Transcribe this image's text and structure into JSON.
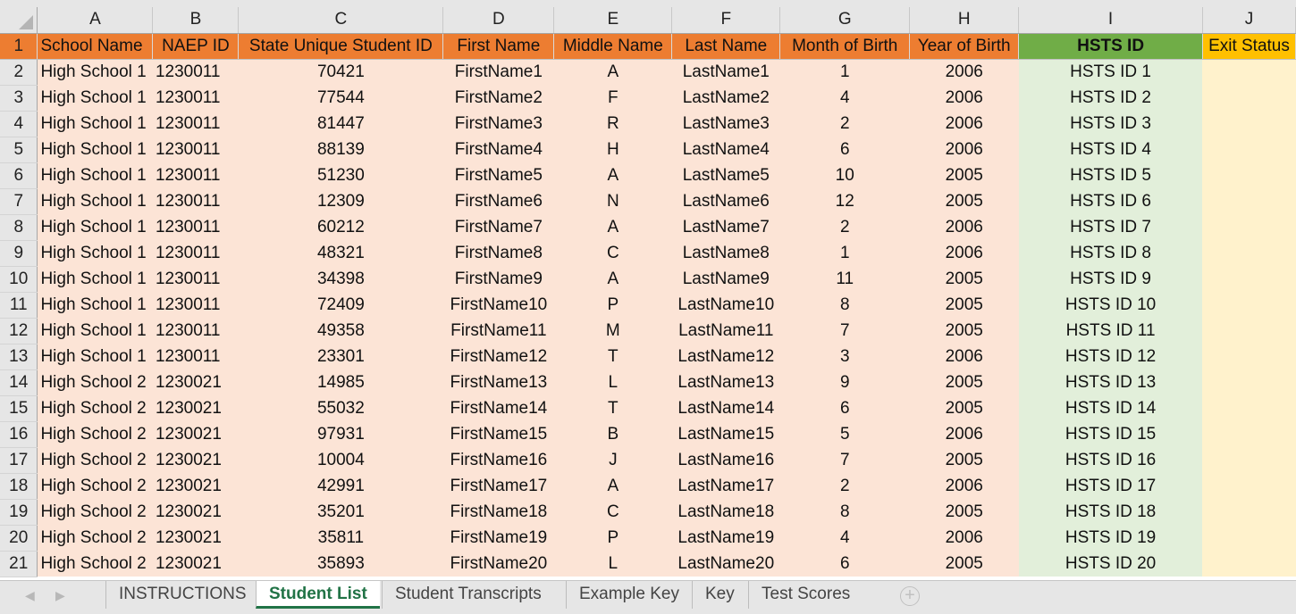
{
  "columns": [
    "A",
    "B",
    "C",
    "D",
    "E",
    "F",
    "G",
    "H",
    "I",
    "J"
  ],
  "headers": [
    "School Name",
    "NAEP ID",
    "State Unique Student ID",
    "First Name",
    "Middle Name",
    "Last Name",
    "Month of Birth",
    "Year of Birth",
    "HSTS ID",
    "Exit Status"
  ],
  "colors": {
    "header_orange": "#ed7d31",
    "header_green": "#70ad47",
    "header_yellow": "#ffc000",
    "data_orange": "#fce4d6",
    "data_green": "#e2efda",
    "data_yellow": "#fff2cc",
    "active_tab": "#217346"
  },
  "rows": [
    [
      "High School 1",
      "1230011",
      "70421",
      "FirstName1",
      "A",
      "LastName1",
      "1",
      "2006",
      "HSTS ID 1",
      ""
    ],
    [
      "High School 1",
      "1230011",
      "77544",
      "FirstName2",
      "F",
      "LastName2",
      "4",
      "2006",
      "HSTS ID 2",
      ""
    ],
    [
      "High School 1",
      "1230011",
      "81447",
      "FirstName3",
      "R",
      "LastName3",
      "2",
      "2006",
      "HSTS ID 3",
      ""
    ],
    [
      "High School 1",
      "1230011",
      "88139",
      "FirstName4",
      "H",
      "LastName4",
      "6",
      "2006",
      "HSTS ID 4",
      ""
    ],
    [
      "High School 1",
      "1230011",
      "51230",
      "FirstName5",
      "A",
      "LastName5",
      "10",
      "2005",
      "HSTS ID 5",
      ""
    ],
    [
      "High School 1",
      "1230011",
      "12309",
      "FirstName6",
      "N",
      "LastName6",
      "12",
      "2005",
      "HSTS ID 6",
      ""
    ],
    [
      "High School 1",
      "1230011",
      "60212",
      "FirstName7",
      "A",
      "LastName7",
      "2",
      "2006",
      "HSTS ID 7",
      ""
    ],
    [
      "High School 1",
      "1230011",
      "48321",
      "FirstName8",
      "C",
      "LastName8",
      "1",
      "2006",
      "HSTS ID 8",
      ""
    ],
    [
      "High School 1",
      "1230011",
      "34398",
      "FirstName9",
      "A",
      "LastName9",
      "11",
      "2005",
      "HSTS ID 9",
      ""
    ],
    [
      "High School 1",
      "1230011",
      "72409",
      "FirstName10",
      "P",
      "LastName10",
      "8",
      "2005",
      "HSTS ID 10",
      ""
    ],
    [
      "High School 1",
      "1230011",
      "49358",
      "FirstName11",
      "M",
      "LastName11",
      "7",
      "2005",
      "HSTS ID 11",
      ""
    ],
    [
      "High School 1",
      "1230011",
      "23301",
      "FirstName12",
      "T",
      "LastName12",
      "3",
      "2006",
      "HSTS ID 12",
      ""
    ],
    [
      "High School 2",
      "1230021",
      "14985",
      "FirstName13",
      "L",
      "LastName13",
      "9",
      "2005",
      "HSTS ID 13",
      ""
    ],
    [
      "High School 2",
      "1230021",
      "55032",
      "FirstName14",
      "T",
      "LastName14",
      "6",
      "2005",
      "HSTS ID 14",
      ""
    ],
    [
      "High School 2",
      "1230021",
      "97931",
      "FirstName15",
      "B",
      "LastName15",
      "5",
      "2006",
      "HSTS ID 15",
      ""
    ],
    [
      "High School 2",
      "1230021",
      "10004",
      "FirstName16",
      "J",
      "LastName16",
      "7",
      "2005",
      "HSTS ID 16",
      ""
    ],
    [
      "High School 2",
      "1230021",
      "42991",
      "FirstName17",
      "A",
      "LastName17",
      "2",
      "2006",
      "HSTS ID 17",
      ""
    ],
    [
      "High School 2",
      "1230021",
      "35201",
      "FirstName18",
      "C",
      "LastName18",
      "8",
      "2005",
      "HSTS ID 18",
      ""
    ],
    [
      "High School 2",
      "1230021",
      "35811",
      "FirstName19",
      "P",
      "LastName19",
      "4",
      "2006",
      "HSTS ID 19",
      ""
    ],
    [
      "High School 2",
      "1230021",
      "35893",
      "FirstName20",
      "L",
      "LastName20",
      "6",
      "2005",
      "HSTS ID 20",
      ""
    ]
  ],
  "tabs": [
    {
      "label": "INSTRUCTIONS"
    },
    {
      "label": "Student List",
      "active": true
    },
    {
      "label": "Student Transcripts"
    },
    {
      "label": "Example Key"
    },
    {
      "label": "Key"
    },
    {
      "label": "Test Scores"
    }
  ],
  "add_sheet_icon": "plus-circle-icon"
}
